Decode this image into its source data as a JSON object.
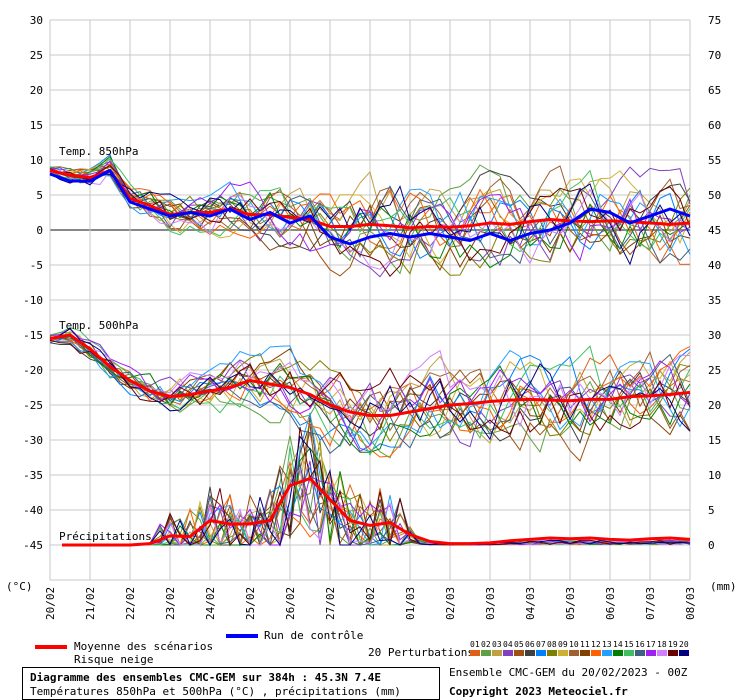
{
  "chart_data": {
    "type": "line",
    "x_tick_labels": [
      "20/02",
      "21/02",
      "22/02",
      "23/02",
      "24/02",
      "25/02",
      "26/02",
      "27/02",
      "28/02",
      "01/03",
      "02/03",
      "03/03",
      "04/03",
      "05/03",
      "06/03",
      "07/03",
      "08/03"
    ],
    "left_axis": {
      "label": "(°C)",
      "ticks": [
        30,
        25,
        20,
        15,
        10,
        5,
        0,
        -5,
        -10,
        -15,
        -20,
        -25,
        -30,
        -35,
        -40,
        -45
      ],
      "range": [
        -50,
        30
      ]
    },
    "right_axis": {
      "label": "(mm)",
      "ticks": [
        75,
        70,
        65,
        60,
        55,
        50,
        45,
        40,
        35,
        30,
        25,
        20,
        15,
        10,
        5,
        0
      ],
      "range": [
        -5,
        75
      ]
    },
    "annotations": {
      "t850": "Temp. 850hPa",
      "t500": "Temp. 500hPa",
      "precip": "Précipitations"
    },
    "series": [
      {
        "name": "Moyenne des scénarios",
        "color": "#ff0000",
        "group": "t850",
        "points": [
          [
            0,
            8.5
          ],
          [
            0.5,
            7.8
          ],
          [
            1,
            7.5
          ],
          [
            1.5,
            8.5
          ],
          [
            2,
            4.5
          ],
          [
            2.5,
            3.5
          ],
          [
            3,
            2.2
          ],
          [
            3.5,
            2.5
          ],
          [
            4,
            2.5
          ],
          [
            4.5,
            3
          ],
          [
            5,
            2.2
          ],
          [
            5.5,
            2.2
          ],
          [
            6,
            1.8
          ],
          [
            6.5,
            1.5
          ],
          [
            7,
            0.5
          ],
          [
            7.5,
            0.5
          ],
          [
            8,
            0.8
          ],
          [
            8.5,
            0.6
          ],
          [
            9,
            0.3
          ],
          [
            9.5,
            0.5
          ],
          [
            10,
            0.4
          ],
          [
            10.5,
            0.6
          ],
          [
            11,
            1.0
          ],
          [
            11.5,
            0.8
          ],
          [
            12,
            1.2
          ],
          [
            12.5,
            1.5
          ],
          [
            13,
            1.3
          ],
          [
            13.5,
            1.2
          ],
          [
            14,
            1.3
          ],
          [
            14.5,
            1.2
          ],
          [
            15,
            1.0
          ],
          [
            15.5,
            0.8
          ],
          [
            16,
            1.0
          ]
        ]
      },
      {
        "name": "Run de contrôle",
        "color": "#0000ff",
        "group": "t850",
        "points": [
          [
            0,
            8
          ],
          [
            0.5,
            7
          ],
          [
            1,
            7
          ],
          [
            1.5,
            8.5
          ],
          [
            2,
            4
          ],
          [
            2.5,
            3
          ],
          [
            3,
            2
          ],
          [
            3.5,
            2.5
          ],
          [
            4,
            2
          ],
          [
            4.5,
            3
          ],
          [
            5,
            1.5
          ],
          [
            5.5,
            2.5
          ],
          [
            6,
            1
          ],
          [
            6.5,
            2
          ],
          [
            7,
            -1
          ],
          [
            7.5,
            -2
          ],
          [
            8,
            -1
          ],
          [
            8.5,
            -0.5
          ],
          [
            9,
            -1
          ],
          [
            9.5,
            -0.5
          ],
          [
            10,
            -1
          ],
          [
            10.5,
            -1.5
          ],
          [
            11,
            -0.5
          ],
          [
            11.5,
            -1.5
          ],
          [
            12,
            -0.5
          ],
          [
            12.5,
            0
          ],
          [
            13,
            1
          ],
          [
            13.5,
            3
          ],
          [
            14,
            2.5
          ],
          [
            14.5,
            1
          ],
          [
            15,
            2
          ],
          [
            15.5,
            3
          ],
          [
            16,
            2
          ]
        ]
      },
      {
        "name": "Moyenne des scénarios",
        "color": "#ff0000",
        "group": "t500",
        "points": [
          [
            0,
            -15.5
          ],
          [
            0.5,
            -15
          ],
          [
            1,
            -17
          ],
          [
            1.5,
            -19.5
          ],
          [
            2,
            -21.5
          ],
          [
            2.5,
            -23
          ],
          [
            3,
            -23.8
          ],
          [
            3.5,
            -23.5
          ],
          [
            4,
            -23
          ],
          [
            4.5,
            -22.5
          ],
          [
            5,
            -21.5
          ],
          [
            5.5,
            -22
          ],
          [
            6,
            -22.5
          ],
          [
            6.5,
            -23.5
          ],
          [
            7,
            -25
          ],
          [
            7.5,
            -26
          ],
          [
            8,
            -26.5
          ],
          [
            8.5,
            -26.5
          ],
          [
            9,
            -26
          ],
          [
            9.5,
            -25.5
          ],
          [
            10,
            -25
          ],
          [
            10.5,
            -24.8
          ],
          [
            11,
            -24.5
          ],
          [
            11.5,
            -24.3
          ],
          [
            12,
            -24.2
          ],
          [
            12.5,
            -24.3
          ],
          [
            13,
            -24.4
          ],
          [
            13.5,
            -24.2
          ],
          [
            14,
            -24.2
          ],
          [
            14.5,
            -23.8
          ],
          [
            15,
            -23.7
          ],
          [
            15.5,
            -23.5
          ],
          [
            16,
            -23.2
          ]
        ]
      },
      {
        "name": "Moyenne des scénarios",
        "color": "#ff0000",
        "group": "precip",
        "points": [
          [
            0.3,
            0
          ],
          [
            1,
            0
          ],
          [
            2,
            0
          ],
          [
            2.5,
            0.2
          ],
          [
            3,
            1.3
          ],
          [
            3.5,
            1.2
          ],
          [
            4,
            3.5
          ],
          [
            4.5,
            3.0
          ],
          [
            5,
            3.0
          ],
          [
            5.5,
            3.5
          ],
          [
            6,
            8.5
          ],
          [
            6.5,
            9.5
          ],
          [
            7,
            6.5
          ],
          [
            7.5,
            3.5
          ],
          [
            8,
            2.8
          ],
          [
            8.5,
            3.2
          ],
          [
            9,
            1.5
          ],
          [
            9.5,
            0.5
          ],
          [
            10,
            0.2
          ],
          [
            10.5,
            0.2
          ],
          [
            11,
            0.3
          ],
          [
            11.5,
            0.6
          ],
          [
            12,
            0.8
          ],
          [
            12.5,
            1.0
          ],
          [
            13,
            0.9
          ],
          [
            13.5,
            1.0
          ],
          [
            14,
            0.8
          ],
          [
            14.5,
            0.7
          ],
          [
            15,
            0.9
          ],
          [
            15.5,
            1.0
          ],
          [
            16,
            0.8
          ]
        ]
      }
    ],
    "perturbation_colors": [
      "#e0601a",
      "#60a040",
      "#c0a040",
      "#8040c0",
      "#a05010",
      "#404040",
      "#0080ff",
      "#808000",
      "#d0b030",
      "#a06030",
      "#804000",
      "#ff6000",
      "#20a0ff",
      "#008000",
      "#40c060",
      "#406080",
      "#a020f0",
      "#d080ff",
      "#6a0000",
      "#000080"
    ],
    "grid": true,
    "legend": "bottom"
  },
  "legend": {
    "mean_label": "Moyenne des scénarios",
    "snow_label": "Risque neige",
    "control_label": "Run de contrôle",
    "perturb_label": "20 Perturbations",
    "perturb_numbers": [
      "01",
      "02",
      "03",
      "04",
      "05",
      "06",
      "07",
      "08",
      "09",
      "10",
      "11",
      "12",
      "13",
      "14",
      "15",
      "16",
      "17",
      "18",
      "19",
      "20"
    ]
  },
  "footer": {
    "title": "Diagramme des ensembles CMC-GEM sur 384h : 45.3N 7.4E",
    "subtitle": "Températures 850hPa et 500hPa (°C) , précipitations (mm)",
    "run": "Ensemble CMC-GEM du 20/02/2023 - 00Z",
    "copyright": "Copyright 2023 Meteociel.fr"
  }
}
